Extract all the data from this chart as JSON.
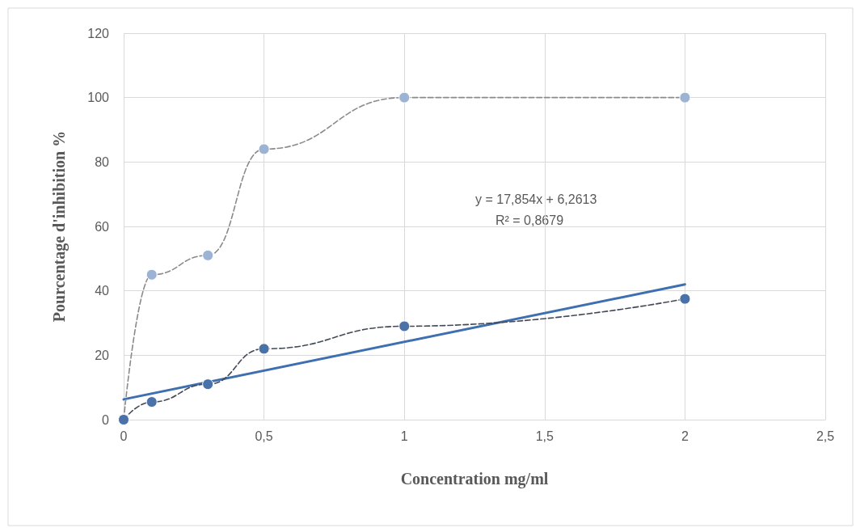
{
  "chart_data": {
    "type": "line",
    "xlabel": "Concentration mg/ml",
    "ylabel": "Pourcentage d'inhibition %",
    "x": [
      0,
      0.1,
      0.3,
      0.5,
      1,
      2
    ],
    "series": [
      {
        "color": "#9db3d3",
        "values": [
          0,
          45,
          51,
          84,
          100,
          100
        ],
        "line_style": "dashed",
        "marker": "circle"
      },
      {
        "color": "#4a72a8",
        "values": [
          0,
          5.5,
          11,
          22,
          29,
          37.5
        ],
        "line_style": "dashed",
        "marker": "circle"
      },
      {
        "type": "line",
        "color": "#3e6fb0",
        "x": [
          0,
          2
        ],
        "values": [
          6.3,
          42
        ],
        "line_style": "solid",
        "marker": "none"
      }
    ],
    "xlim": [
      0,
      2.5
    ],
    "xticks": [
      {
        "value": 0,
        "label": "0"
      },
      {
        "value": 0.5,
        "label": "0,5"
      },
      {
        "value": 1,
        "label": "1"
      },
      {
        "value": 1.5,
        "label": "1,5"
      },
      {
        "value": 2,
        "label": "2"
      },
      {
        "value": 2.5,
        "label": "2,5"
      }
    ],
    "ylim": [
      0,
      120
    ],
    "yticks": [
      0,
      20,
      40,
      60,
      80,
      100,
      120
    ],
    "grid": true,
    "annotations": [
      "y = 17,854x + 6,2613",
      "R² = 0,8679"
    ]
  }
}
